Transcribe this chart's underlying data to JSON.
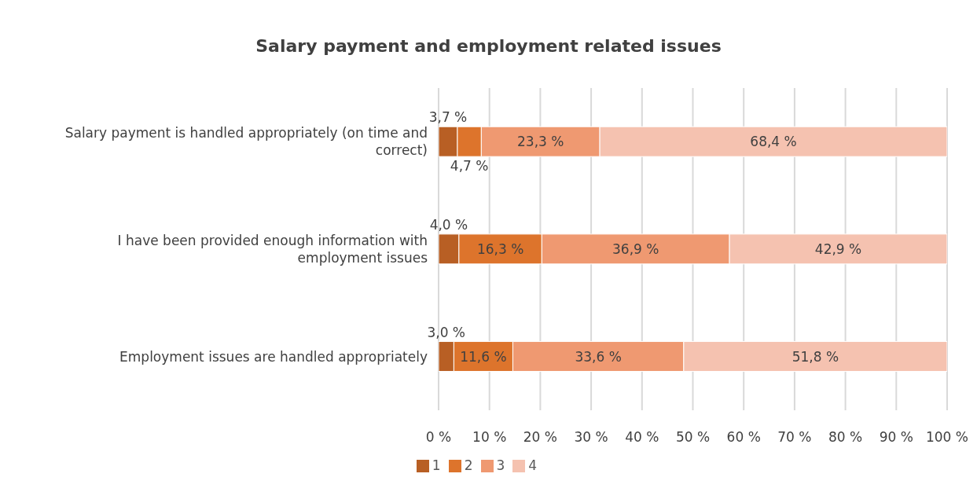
{
  "chart_data": {
    "type": "bar",
    "orientation": "horizontal",
    "stacked": true,
    "title": "Salary payment and employment related issues",
    "categories": [
      "Salary payment is handled appropriately (on time and correct)",
      "I have been provided enough information with employment issues",
      "Employment issues are handled appropriately"
    ],
    "series": [
      {
        "name": "1",
        "color": "#b85f24",
        "values": [
          3.7,
          4.0,
          3.0
        ],
        "value_labels": [
          "3,7 %",
          "4,0 %",
          "3,0 %"
        ]
      },
      {
        "name": "2",
        "color": "#dd742c",
        "values": [
          4.7,
          16.3,
          11.6
        ],
        "value_labels": [
          "4,7 %",
          "16,3 %",
          "11,6 %"
        ]
      },
      {
        "name": "3",
        "color": "#ef9971",
        "values": [
          23.3,
          36.9,
          33.6
        ],
        "value_labels": [
          "23,3 %",
          "36,9 %",
          "33,6 %"
        ]
      },
      {
        "name": "4",
        "color": "#f5c2b0",
        "values": [
          68.4,
          42.9,
          51.8
        ],
        "value_labels": [
          "68,4 %",
          "42,9 %",
          "51,8 %"
        ]
      }
    ],
    "xlim": [
      0,
      100
    ],
    "xticks": [
      {
        "value": 0,
        "label": "0 %"
      },
      {
        "value": 10,
        "label": "10 %"
      },
      {
        "value": 20,
        "label": "20 %"
      },
      {
        "value": 30,
        "label": "30 %"
      },
      {
        "value": 40,
        "label": "40 %"
      },
      {
        "value": 50,
        "label": "50 %"
      },
      {
        "value": 60,
        "label": "60 %"
      },
      {
        "value": 70,
        "label": "70 %"
      },
      {
        "value": 80,
        "label": "80 %"
      },
      {
        "value": 90,
        "label": "90 %"
      },
      {
        "value": 100,
        "label": "100 %"
      }
    ],
    "grid": "x",
    "legend": "bottom"
  }
}
